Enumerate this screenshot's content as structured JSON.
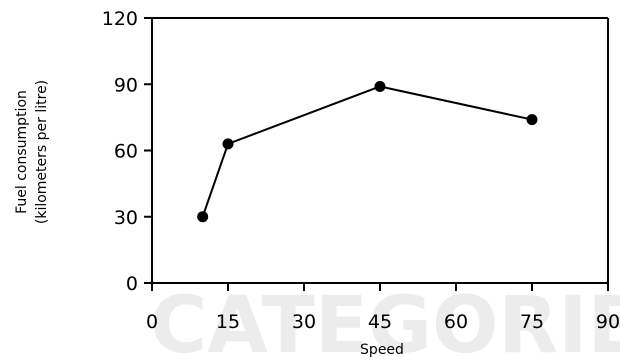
{
  "chart_data": {
    "type": "line",
    "title": "",
    "xlabel": "Speed",
    "ylabel_lines": [
      "Fuel consumption",
      "(kilometers per litre)"
    ],
    "xlim": [
      0,
      90
    ],
    "ylim": [
      0,
      120
    ],
    "x_ticks": [
      "0",
      "15",
      "30",
      "45",
      "60",
      "75",
      "90"
    ],
    "y_ticks": [
      "0",
      "30",
      "60",
      "90",
      "120"
    ],
    "grid": false,
    "legend": "none",
    "series": [
      {
        "x": [
          10,
          15,
          45,
          75
        ],
        "y": [
          30,
          63,
          89,
          74
        ],
        "color": "#000000"
      }
    ]
  }
}
